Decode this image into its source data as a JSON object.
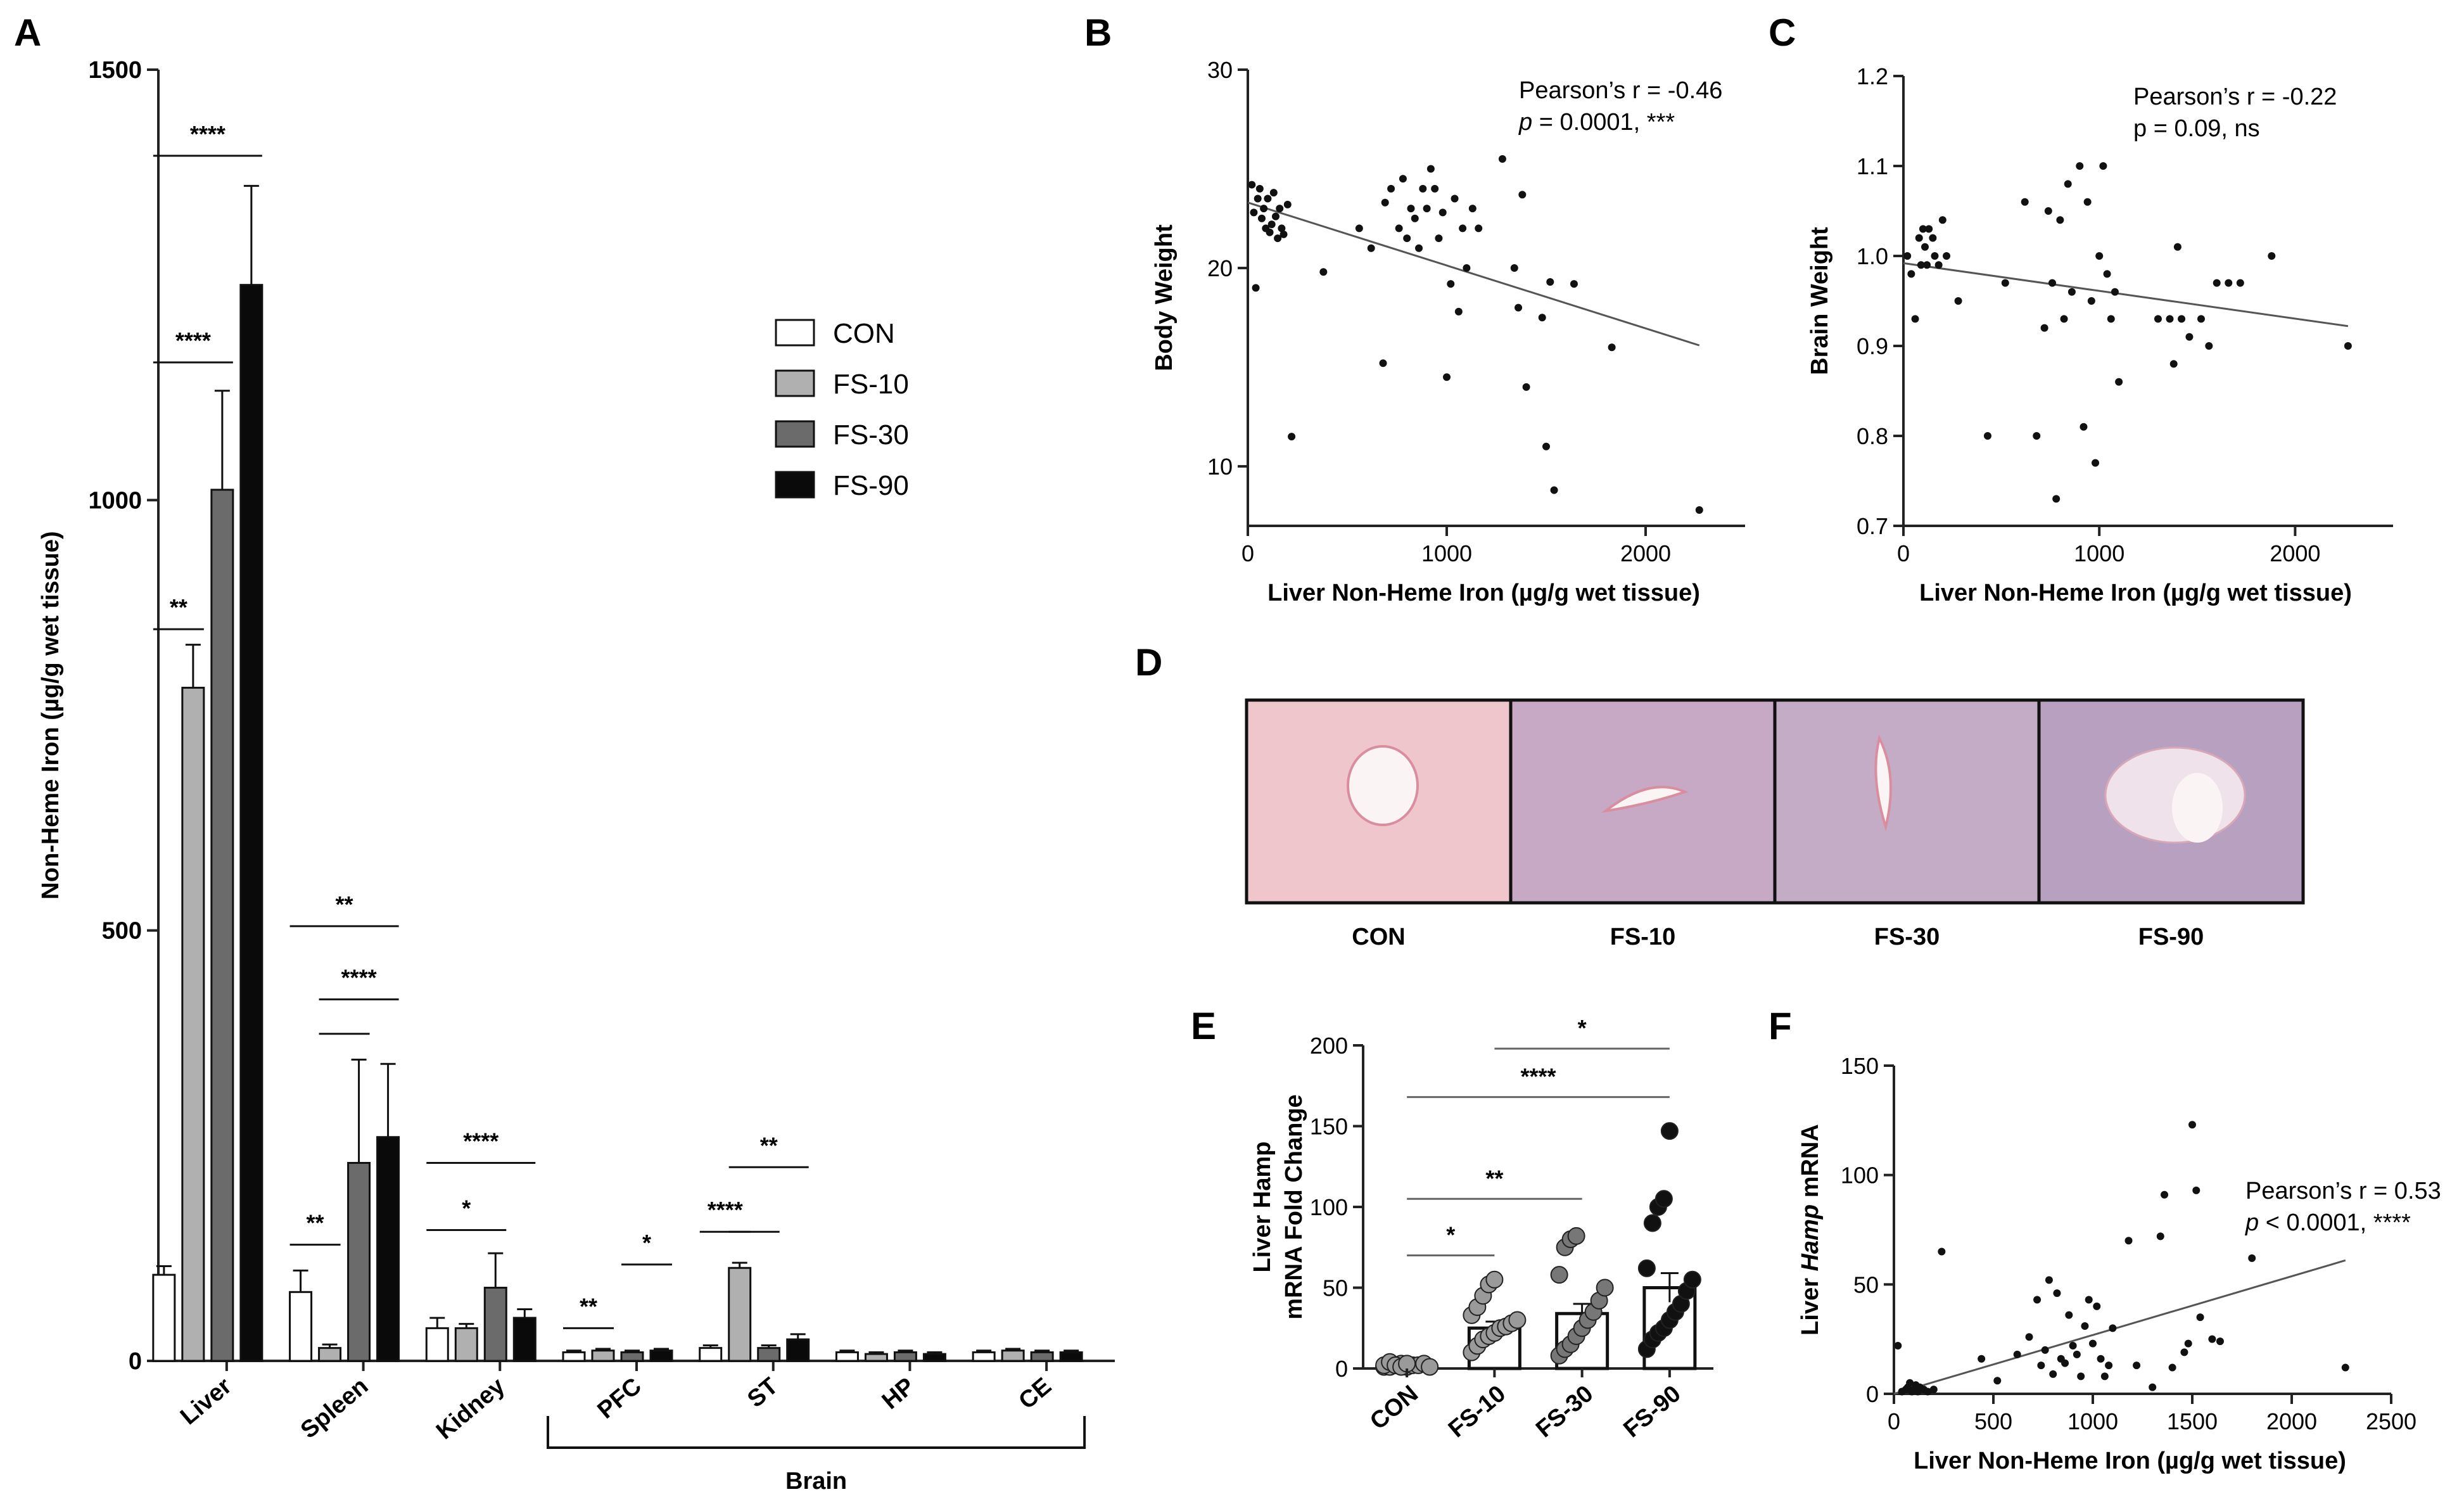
{
  "panels": {
    "A": "A",
    "B": "B",
    "C": "C",
    "D": "D",
    "E": "E",
    "F": "F"
  },
  "colors": {
    "CON": "#ffffff",
    "FS-10": "#b0b0b0",
    "FS-30": "#6b6b6b",
    "FS-90": "#0a0a0a"
  },
  "chart_data": [
    {
      "id": "A",
      "type": "bar",
      "ylabel": "Non-Heme Iron (µg/g wet tissue)",
      "ylim": [
        0,
        1500
      ],
      "yticks": [
        "0",
        "500",
        "1000",
        "1500"
      ],
      "categories": [
        "Liver",
        "Spleen",
        "Kidney",
        "PFC",
        "ST",
        "HP",
        "CE"
      ],
      "group_label": "Brain",
      "legend": [
        "CON",
        "FS-10",
        "FS-30",
        "FS-90"
      ],
      "series": [
        {
          "name": "CON",
          "values": [
            100,
            80,
            38,
            10,
            15,
            10,
            10
          ],
          "errors": [
            10,
            25,
            12,
            2,
            3,
            2,
            2
          ]
        },
        {
          "name": "FS-10",
          "values": [
            782,
            15,
            38,
            12,
            108,
            8,
            12
          ],
          "errors": [
            50,
            4,
            5,
            2,
            6,
            2,
            2
          ]
        },
        {
          "name": "FS-30",
          "values": [
            1012,
            230,
            85,
            10,
            15,
            10,
            10
          ],
          "errors": [
            115,
            120,
            40,
            2,
            3,
            2,
            2
          ]
        },
        {
          "name": "FS-90",
          "values": [
            1250,
            260,
            50,
            12,
            25,
            8,
            10
          ],
          "errors": [
            115,
            85,
            10,
            2,
            6,
            2,
            2
          ]
        }
      ],
      "significance": [
        {
          "label": "**",
          "cat": 0,
          "from": 0,
          "to": 1,
          "y": 850
        },
        {
          "label": "****",
          "cat": 0,
          "from": 0,
          "to": 2,
          "y": 1160
        },
        {
          "label": "****",
          "cat": 0,
          "from": 0,
          "to": 3,
          "y": 1400
        },
        {
          "label": "**",
          "cat": 1,
          "from": 0,
          "to": 1,
          "y": 135
        },
        {
          "label": "",
          "cat": 1,
          "from": 1,
          "to": 2,
          "y": 380
        },
        {
          "label": "****",
          "cat": 1,
          "from": 1,
          "to": 3,
          "y": 420
        },
        {
          "label": "**",
          "cat": 1,
          "from": 0,
          "to": 3,
          "y": 505
        },
        {
          "label": "*",
          "cat": 2,
          "from": 0,
          "to": 2,
          "y": 152
        },
        {
          "label": "****",
          "cat": 2,
          "from": 0,
          "to": 3,
          "y": 230
        },
        {
          "label": "**",
          "cat": 3,
          "from": 0,
          "to": 1,
          "y": 38
        },
        {
          "label": "*",
          "cat": 3,
          "from": 2,
          "to": 3,
          "y": 112
        },
        {
          "label": "****",
          "cat": 4,
          "from": 0,
          "to": 1,
          "y": 150
        },
        {
          "label": "",
          "cat": 4,
          "from": 1,
          "to": 2,
          "y": 150
        },
        {
          "label": "**",
          "cat": 4,
          "from": 1,
          "to": 3,
          "y": 225
        }
      ]
    },
    {
      "id": "B",
      "type": "scatter",
      "xlabel": "Liver Non-Heme Iron (µg/g wet tissue)",
      "ylabel": "Body Weight",
      "xlim": [
        0,
        2500
      ],
      "ylim": [
        7,
        30
      ],
      "xticks": [
        "0",
        "1000",
        "2000"
      ],
      "yticks": [
        "10",
        "20",
        "30"
      ],
      "annotation": [
        "Pearson’s r = -0.46",
        "p = 0.0001, ***"
      ],
      "fit": [
        [
          0,
          23.3
        ],
        [
          2270,
          16.1
        ]
      ],
      "points": [
        [
          20,
          24.2
        ],
        [
          30,
          22.8
        ],
        [
          40,
          19
        ],
        [
          50,
          23.5
        ],
        [
          60,
          24
        ],
        [
          70,
          22.5
        ],
        [
          80,
          23
        ],
        [
          90,
          22
        ],
        [
          100,
          23.5
        ],
        [
          110,
          21.8
        ],
        [
          120,
          22.2
        ],
        [
          130,
          23.8
        ],
        [
          140,
          22.6
        ],
        [
          150,
          21.5
        ],
        [
          160,
          23
        ],
        [
          170,
          22
        ],
        [
          180,
          21.7
        ],
        [
          200,
          23.2
        ],
        [
          220,
          11.5
        ],
        [
          380,
          19.8
        ],
        [
          560,
          22
        ],
        [
          620,
          21
        ],
        [
          680,
          15.2
        ],
        [
          690,
          23.3
        ],
        [
          720,
          24
        ],
        [
          760,
          22
        ],
        [
          780,
          24.5
        ],
        [
          800,
          21.5
        ],
        [
          820,
          23
        ],
        [
          840,
          22.5
        ],
        [
          860,
          21
        ],
        [
          880,
          24
        ],
        [
          900,
          23
        ],
        [
          920,
          25
        ],
        [
          940,
          24
        ],
        [
          960,
          21.5
        ],
        [
          980,
          22.8
        ],
        [
          1000,
          14.5
        ],
        [
          1020,
          19.2
        ],
        [
          1040,
          23.5
        ],
        [
          1060,
          17.8
        ],
        [
          1080,
          22
        ],
        [
          1100,
          20
        ],
        [
          1130,
          23
        ],
        [
          1160,
          22
        ],
        [
          1280,
          25.5
        ],
        [
          1340,
          20
        ],
        [
          1360,
          18
        ],
        [
          1380,
          23.7
        ],
        [
          1400,
          14
        ],
        [
          1480,
          17.5
        ],
        [
          1500,
          11
        ],
        [
          1520,
          19.3
        ],
        [
          1540,
          8.8
        ],
        [
          1640,
          19.2
        ],
        [
          1830,
          16
        ],
        [
          2270,
          7.8
        ]
      ]
    },
    {
      "id": "C",
      "type": "scatter",
      "xlabel": "Liver Non-Heme Iron (µg/g wet tissue)",
      "ylabel": "Brain Weight",
      "xlim": [
        0,
        2500
      ],
      "ylim": [
        0.7,
        1.2
      ],
      "xticks": [
        "0",
        "1000",
        "2000"
      ],
      "yticks": [
        "0.7",
        "0.8",
        "0.9",
        "1.0",
        "1.1",
        "1.2"
      ],
      "annotation": [
        "Pearson’s r = -0.22",
        "p  = 0.09, ns"
      ],
      "fit": [
        [
          0,
          0.992
        ],
        [
          2270,
          0.922
        ]
      ],
      "points": [
        [
          20,
          1.0
        ],
        [
          40,
          0.98
        ],
        [
          60,
          0.93
        ],
        [
          80,
          1.02
        ],
        [
          90,
          0.99
        ],
        [
          100,
          1.03
        ],
        [
          110,
          1.01
        ],
        [
          120,
          0.99
        ],
        [
          130,
          1.03
        ],
        [
          150,
          1.02
        ],
        [
          160,
          1.0
        ],
        [
          180,
          0.99
        ],
        [
          200,
          1.04
        ],
        [
          220,
          1.0
        ],
        [
          280,
          0.95
        ],
        [
          430,
          0.8
        ],
        [
          520,
          0.97
        ],
        [
          620,
          1.06
        ],
        [
          680,
          0.8
        ],
        [
          720,
          0.92
        ],
        [
          740,
          1.05
        ],
        [
          760,
          0.97
        ],
        [
          780,
          0.73
        ],
        [
          800,
          1.04
        ],
        [
          820,
          0.93
        ],
        [
          840,
          1.08
        ],
        [
          860,
          0.96
        ],
        [
          900,
          1.1
        ],
        [
          920,
          0.81
        ],
        [
          940,
          1.06
        ],
        [
          960,
          0.95
        ],
        [
          980,
          0.77
        ],
        [
          1000,
          1.0
        ],
        [
          1020,
          1.1
        ],
        [
          1040,
          0.98
        ],
        [
          1060,
          0.93
        ],
        [
          1080,
          0.96
        ],
        [
          1100,
          0.86
        ],
        [
          1300,
          0.93
        ],
        [
          1360,
          0.93
        ],
        [
          1380,
          0.88
        ],
        [
          1400,
          1.01
        ],
        [
          1420,
          0.93
        ],
        [
          1460,
          0.91
        ],
        [
          1520,
          0.93
        ],
        [
          1560,
          0.9
        ],
        [
          1600,
          0.97
        ],
        [
          1660,
          0.97
        ],
        [
          1720,
          0.97
        ],
        [
          1880,
          1.0
        ],
        [
          2270,
          0.9
        ]
      ]
    },
    {
      "id": "D",
      "type": "image-panel",
      "labels": [
        "CON",
        "FS-10",
        "FS-30",
        "FS-90"
      ]
    },
    {
      "id": "E",
      "type": "bar",
      "ylabel": [
        "Liver Hamp",
        "mRNA Fold Change"
      ],
      "ylim": [
        0,
        200
      ],
      "yticks": [
        "0",
        "50",
        "100",
        "150",
        "200"
      ],
      "categories": [
        "CON",
        "FS-10",
        "FS-30",
        "FS-90"
      ],
      "values": [
        2,
        25,
        34,
        50
      ],
      "errors": [
        1,
        4,
        6,
        9
      ],
      "points": [
        [
          1,
          1,
          2,
          3,
          1,
          2,
          2,
          3,
          1,
          2,
          4,
          2,
          1,
          3
        ],
        [
          10,
          14,
          18,
          20,
          22,
          25,
          26,
          28,
          30,
          33,
          38,
          45,
          52,
          55
        ],
        [
          8,
          12,
          15,
          20,
          25,
          30,
          35,
          42,
          50,
          58,
          75,
          80,
          82
        ],
        [
          12,
          18,
          22,
          25,
          30,
          35,
          40,
          48,
          55,
          62,
          90,
          100,
          105,
          147
        ]
      ],
      "significance": [
        {
          "label": "*",
          "from": 0,
          "to": 1,
          "y": 70
        },
        {
          "label": "**",
          "from": 0,
          "to": 2,
          "y": 105
        },
        {
          "label": "****",
          "from": 0,
          "to": 3,
          "y": 168
        },
        {
          "label": "*",
          "from": 1,
          "to": 3,
          "y": 198
        }
      ]
    },
    {
      "id": "F",
      "type": "scatter",
      "xlabel": "Liver Non-Heme Iron (µg/g wet tissue)",
      "ylabel": [
        "Liver ",
        "Hamp",
        " mRNA"
      ],
      "xlim": [
        0,
        2500
      ],
      "ylim": [
        0,
        150
      ],
      "xticks": [
        "0",
        "500",
        "1000",
        "1500",
        "2000",
        "2500"
      ],
      "yticks": [
        "0",
        "50",
        "100",
        "150"
      ],
      "annotation": [
        "Pearson’s r = 0.53",
        "p < 0.0001, ****"
      ],
      "fit": [
        [
          0,
          0
        ],
        [
          2270,
          61
        ]
      ],
      "points": [
        [
          20,
          22
        ],
        [
          40,
          1
        ],
        [
          60,
          2
        ],
        [
          70,
          3
        ],
        [
          80,
          5
        ],
        [
          90,
          1
        ],
        [
          100,
          2
        ],
        [
          110,
          4
        ],
        [
          120,
          1
        ],
        [
          130,
          3
        ],
        [
          150,
          2
        ],
        [
          170,
          1
        ],
        [
          200,
          2
        ],
        [
          240,
          65
        ],
        [
          440,
          16
        ],
        [
          520,
          6
        ],
        [
          620,
          18
        ],
        [
          680,
          26
        ],
        [
          720,
          43
        ],
        [
          740,
          13
        ],
        [
          760,
          20
        ],
        [
          780,
          52
        ],
        [
          800,
          9
        ],
        [
          820,
          46
        ],
        [
          840,
          16
        ],
        [
          860,
          14
        ],
        [
          880,
          36
        ],
        [
          900,
          22
        ],
        [
          920,
          18
        ],
        [
          940,
          8
        ],
        [
          960,
          31
        ],
        [
          980,
          43
        ],
        [
          1000,
          23
        ],
        [
          1020,
          40
        ],
        [
          1040,
          16
        ],
        [
          1060,
          8
        ],
        [
          1080,
          13
        ],
        [
          1100,
          30
        ],
        [
          1180,
          70
        ],
        [
          1220,
          13
        ],
        [
          1300,
          3
        ],
        [
          1340,
          72
        ],
        [
          1360,
          91
        ],
        [
          1400,
          12
        ],
        [
          1460,
          19
        ],
        [
          1480,
          23
        ],
        [
          1500,
          123
        ],
        [
          1520,
          93
        ],
        [
          1540,
          35
        ],
        [
          1600,
          25
        ],
        [
          1640,
          24
        ],
        [
          1800,
          62
        ],
        [
          2270,
          12
        ]
      ]
    }
  ]
}
